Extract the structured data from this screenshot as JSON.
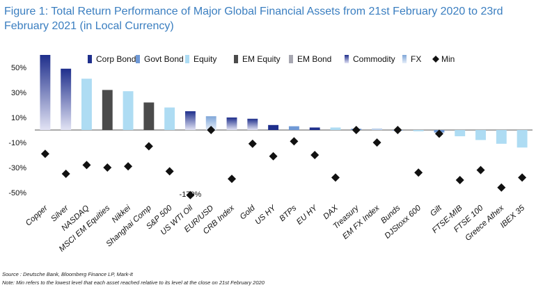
{
  "chart_data": {
    "type": "bar",
    "title": "Figure 1: Total Return Performance of Major Global Financial Assets from 21st February 2020 to 23rd February 2021 (in Local Currency)",
    "categories": [
      "Copper",
      "Silver",
      "NASDAQ",
      "MSCI EM Equities",
      "Nikkei",
      "Shanghai Comp",
      "S&P 500",
      "US WTI Oil",
      "EUR/USD",
      "CRB Index",
      "Gold",
      "US HY",
      "BTPs",
      "EU HY",
      "DAX",
      "Treasury",
      "EM FX Index",
      "Bunds",
      "DJStoxx 600",
      "Gilt",
      "FTSE-MIB",
      "FTSE 100",
      "Greece Athex",
      "IBEX 35"
    ],
    "groups": [
      "Commodity",
      "Commodity",
      "Equity",
      "EM Equity",
      "Equity",
      "EM Equity",
      "Equity",
      "Commodity",
      "FX",
      "Commodity",
      "Commodity",
      "Corp Bond",
      "Govt Bond",
      "Corp Bond",
      "Equity",
      "Govt Bond",
      "FX",
      "Govt Bond",
      "Equity",
      "Govt Bond",
      "Equity",
      "Equity",
      "Equity",
      "Equity"
    ],
    "values": [
      60,
      49,
      41,
      32,
      31,
      22,
      18,
      15,
      11,
      10,
      9,
      4,
      3,
      2,
      2,
      1,
      1,
      0,
      -1,
      -2,
      -5,
      -8,
      -11,
      -14
    ],
    "min_values": [
      -19,
      -35,
      -28,
      -30,
      -29,
      -13,
      -33,
      -170,
      0,
      -39,
      -11,
      -21,
      -9,
      -20,
      -38,
      0,
      -10,
      0,
      -34,
      -3,
      -40,
      -32,
      -46,
      -38
    ],
    "annotations": [
      {
        "category": "US WTI Oil",
        "text": "-170%"
      }
    ],
    "yticks": [
      50,
      30,
      10,
      -10,
      -30,
      -50
    ],
    "ytick_labels": [
      "50%",
      "30%",
      "10%",
      "-10%",
      "-30%",
      "-50%"
    ],
    "ylim": [
      -55,
      62
    ],
    "legend": [
      {
        "name": "Corp Bond",
        "color": "#1f2f8c",
        "marker": "bar"
      },
      {
        "name": "Govt Bond",
        "color": "#6f99d6",
        "marker": "bar"
      },
      {
        "name": "Equity",
        "color": "#aedcf3",
        "marker": "bar"
      },
      {
        "name": "EM Equity",
        "color": "#4b4b4b",
        "marker": "bar"
      },
      {
        "name": "EM Bond",
        "color": "#a7a7b1",
        "marker": "bar"
      },
      {
        "name": "Commodity",
        "color": "#1f2f8c",
        "marker": "gradient"
      },
      {
        "name": "FX",
        "color": "#7fa6d8",
        "marker": "gradient"
      },
      {
        "name": "Min",
        "color": "#111111",
        "marker": "diamond"
      }
    ],
    "legend_position": "top",
    "grid": false,
    "colors": {
      "Corp Bond": "#1f2f8c",
      "Govt Bond": "#6f99d6",
      "Equity": "#aedcf3",
      "EM Equity": "#4b4b4b",
      "EM Bond": "#a7a7b1",
      "Commodity": "#1f2f8c",
      "FX": "#7fa6d8",
      "Min": "#111111",
      "title": "#3a7ec0"
    }
  },
  "source": "Source : Deutsche Bank, Bloomberg Finance LP, Mark-It",
  "note": "Note: Min refers to the lowest level that each asset reached relative to its level at the close on 21st February 2020"
}
